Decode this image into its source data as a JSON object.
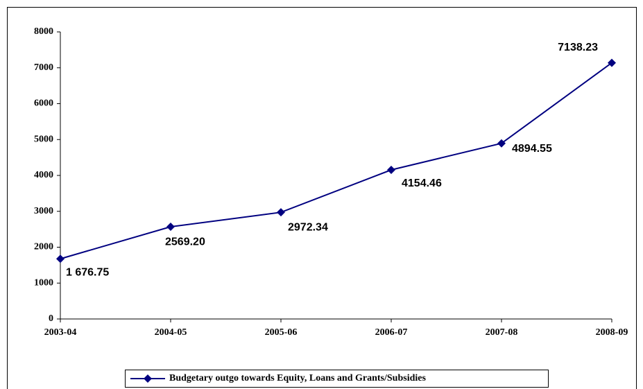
{
  "chart_data": {
    "type": "line",
    "categories": [
      "2003-04",
      "2004-05",
      "2005-06",
      "2006-07",
      "2007-08",
      "2008-09"
    ],
    "series": [
      {
        "name": "Budgetary outgo towards Equity, Loans and Grants/Subsidies",
        "color": "#000080",
        "values": [
          1676.75,
          2569.2,
          2972.34,
          4154.46,
          4894.55,
          7138.23
        ],
        "value_labels": [
          "1 676.75",
          "2569.20",
          "2972.34",
          "4154.46",
          "4894.55",
          "7138.23"
        ]
      }
    ],
    "ylim": [
      0,
      8000
    ],
    "yticks": [
      0,
      1000,
      2000,
      3000,
      4000,
      5000,
      6000,
      7000,
      8000
    ],
    "grid": false,
    "legend": "bottom"
  }
}
